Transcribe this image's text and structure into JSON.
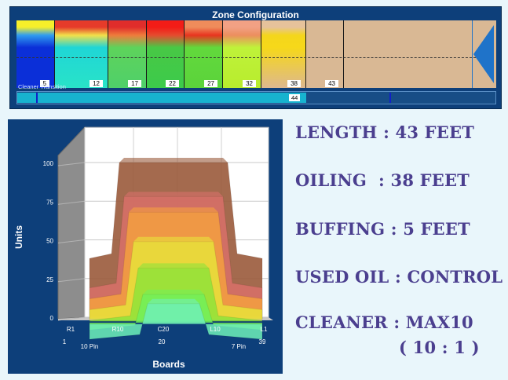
{
  "zone_panel": {
    "title": "Zone Configuration",
    "zones": [
      {
        "label": "5",
        "colors": [
          "#f6ef2a",
          "#2f9cf0",
          "#0b2fd8",
          "#0b2fd8"
        ]
      },
      {
        "label": "12",
        "colors": [
          "#e63b2a",
          "#f3e04a",
          "#1fd6d6",
          "#29e3c8"
        ]
      },
      {
        "label": "17",
        "colors": [
          "#e02d2b",
          "#ef7c3c",
          "#5ed35b",
          "#4fd06a"
        ]
      },
      {
        "label": "22",
        "colors": [
          "#f21c17",
          "#e54b2f",
          "#48c845",
          "#3ccb4b"
        ]
      },
      {
        "label": "27",
        "colors": [
          "#ef8c5b",
          "#e8341f",
          "#62d93c",
          "#5bd33b"
        ]
      },
      {
        "label": "32",
        "colors": [
          "#f2a184",
          "#ec8e5e",
          "#bff23a",
          "#b8ec2d"
        ]
      },
      {
        "label": "38",
        "colors": [
          "#e6c29b",
          "#f4d61c",
          "#f6d819",
          "#ddb88f"
        ]
      },
      {
        "label": "43",
        "colors": [
          "#d9b894",
          "#d9b894",
          "#d9b894",
          "#d9b894"
        ]
      }
    ],
    "cleaner_label": "Cleaner Transition",
    "cleaner_value": "44"
  },
  "chart_data": {
    "type": "area",
    "title": "",
    "ylabel": "Units",
    "xlabel": "Boards",
    "ylim": [
      0,
      100
    ],
    "y_ticks": [
      "100",
      "75",
      "50",
      "25",
      "0"
    ],
    "x_ticks_top": [
      "R1",
      "R10",
      "C20",
      "L10",
      "L1"
    ],
    "x_ticks_bottom": [
      "1",
      "10 Pin",
      "20",
      "7 Pin",
      "39"
    ],
    "series_note": "stacked 3D profile layers by zone",
    "layers": [
      {
        "color": "#9a5a3b",
        "plateau": 100,
        "shoulder": 38
      },
      {
        "color": "#d9706a",
        "plateau": 81,
        "shoulder": 22
      },
      {
        "color": "#f5a040",
        "plateau": 74,
        "shoulder": 18
      },
      {
        "color": "#e8e23a",
        "plateau": 58,
        "shoulder": 14
      },
      {
        "color": "#8fe33a",
        "plateau": 44,
        "shoulder": 10
      },
      {
        "color": "#72f05a",
        "plateau": 30,
        "shoulder": 7
      },
      {
        "color": "#6ff0b8",
        "plateau": 27,
        "shoulder": 4
      }
    ]
  },
  "info": {
    "length": "LENGTH : 43 FEET",
    "oiling": "OILING  : 38 FEET",
    "buffing": "BUFFING : 5 FEET",
    "used_oil": "USED OIL : CONTROL",
    "cleaner": "CLEANER : MAX10",
    "ratio": "( 10 : 1 )"
  }
}
